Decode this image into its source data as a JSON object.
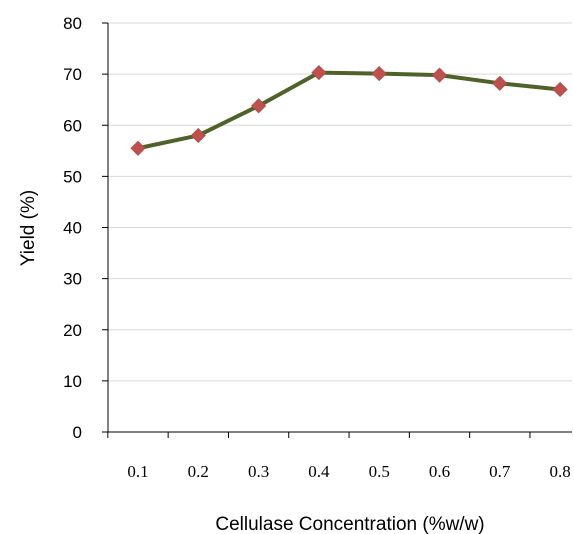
{
  "chart_data": {
    "type": "line",
    "title": "",
    "xlabel": "Cellulase Concentration (%w/w)",
    "ylabel": "Yield (%)",
    "categories": [
      "0.1",
      "0.2",
      "0.3",
      "0.4",
      "0.5",
      "0.6",
      "0.7",
      "0.8"
    ],
    "series": [
      {
        "values": [
          55.5,
          58.0,
          63.8,
          70.3,
          70.1,
          69.8,
          68.2,
          67.0
        ]
      }
    ],
    "yticks": [
      "0",
      "10",
      "20",
      "30",
      "40",
      "50",
      "60",
      "70",
      "80"
    ],
    "ylim": [
      0,
      80
    ],
    "grid": true,
    "legend": "none",
    "colors": {
      "line": "#4f6228",
      "marker": "#c0504d",
      "grid": "#d9d9d9",
      "axis": "#000000"
    }
  }
}
